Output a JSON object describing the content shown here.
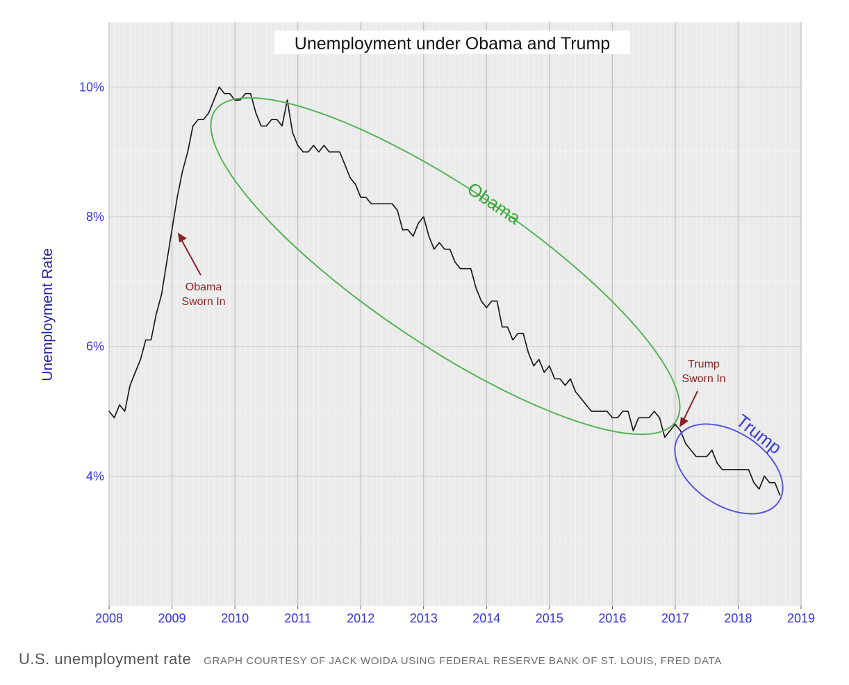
{
  "chart_data": {
    "type": "line",
    "title": "Unemployment under Obama and Trump",
    "ylabel": "Unemployment Rate",
    "xlabel": "",
    "xlim": [
      2008,
      2019
    ],
    "ylim": [
      2.0,
      11.0
    ],
    "x_ticks": [
      "2008",
      "2009",
      "2010",
      "2011",
      "2012",
      "2013",
      "2014",
      "2015",
      "2016",
      "2017",
      "2018",
      "2019"
    ],
    "y_ticks": [
      {
        "value": 4,
        "label": "4%"
      },
      {
        "value": 6,
        "label": "6%"
      },
      {
        "value": 8,
        "label": "8%"
      },
      {
        "value": 10,
        "label": "10%"
      }
    ],
    "grid": true,
    "series": [
      {
        "start": "2008-01",
        "frequency": "monthly",
        "color": "#1a1a1a",
        "values": [
          5.0,
          4.9,
          5.1,
          5.0,
          5.4,
          5.6,
          5.8,
          6.1,
          6.1,
          6.5,
          6.8,
          7.3,
          7.8,
          8.3,
          8.7,
          9.0,
          9.4,
          9.5,
          9.5,
          9.6,
          9.8,
          10.0,
          9.9,
          9.9,
          9.8,
          9.8,
          9.9,
          9.9,
          9.6,
          9.4,
          9.4,
          9.5,
          9.5,
          9.4,
          9.8,
          9.3,
          9.1,
          9.0,
          9.0,
          9.1,
          9.0,
          9.1,
          9.0,
          9.0,
          9.0,
          8.8,
          8.6,
          8.5,
          8.3,
          8.3,
          8.2,
          8.2,
          8.2,
          8.2,
          8.2,
          8.1,
          7.8,
          7.8,
          7.7,
          7.9,
          8.0,
          7.7,
          7.5,
          7.6,
          7.5,
          7.5,
          7.3,
          7.2,
          7.2,
          7.2,
          6.9,
          6.7,
          6.6,
          6.7,
          6.7,
          6.3,
          6.3,
          6.1,
          6.2,
          6.2,
          5.9,
          5.7,
          5.8,
          5.6,
          5.7,
          5.5,
          5.5,
          5.4,
          5.5,
          5.3,
          5.2,
          5.1,
          5.0,
          5.0,
          5.0,
          5.0,
          4.9,
          4.9,
          5.0,
          5.0,
          4.7,
          4.9,
          4.9,
          4.9,
          5.0,
          4.9,
          4.6,
          4.7,
          4.8,
          4.7,
          4.5,
          4.4,
          4.3,
          4.3,
          4.3,
          4.4,
          4.2,
          4.1,
          4.1,
          4.1,
          4.1,
          4.1,
          4.1,
          3.9,
          3.8,
          4.0,
          3.9,
          3.9,
          3.7
        ]
      }
    ],
    "annotations": [
      {
        "lines": [
          "Obama",
          "Sworn In"
        ],
        "points_to": "2009-01",
        "color": "#8b2323"
      },
      {
        "lines": [
          "Trump",
          "Sworn In"
        ],
        "points_to": "2017-01",
        "color": "#8b2323"
      },
      {
        "text": "Obama",
        "encloses": "2009-09 to 2017-01",
        "color": "#3aa63a"
      },
      {
        "text": "Trump",
        "encloses": "2017-01 to 2018-09",
        "color": "#3b3be6"
      }
    ]
  },
  "caption": {
    "title": "U.S. unemployment rate",
    "credit": "GRAPH COURTESY OF JACK WOIDA USING FEDERAL RESERVE BANK OF ST. LOUIS, FRED DATA"
  }
}
